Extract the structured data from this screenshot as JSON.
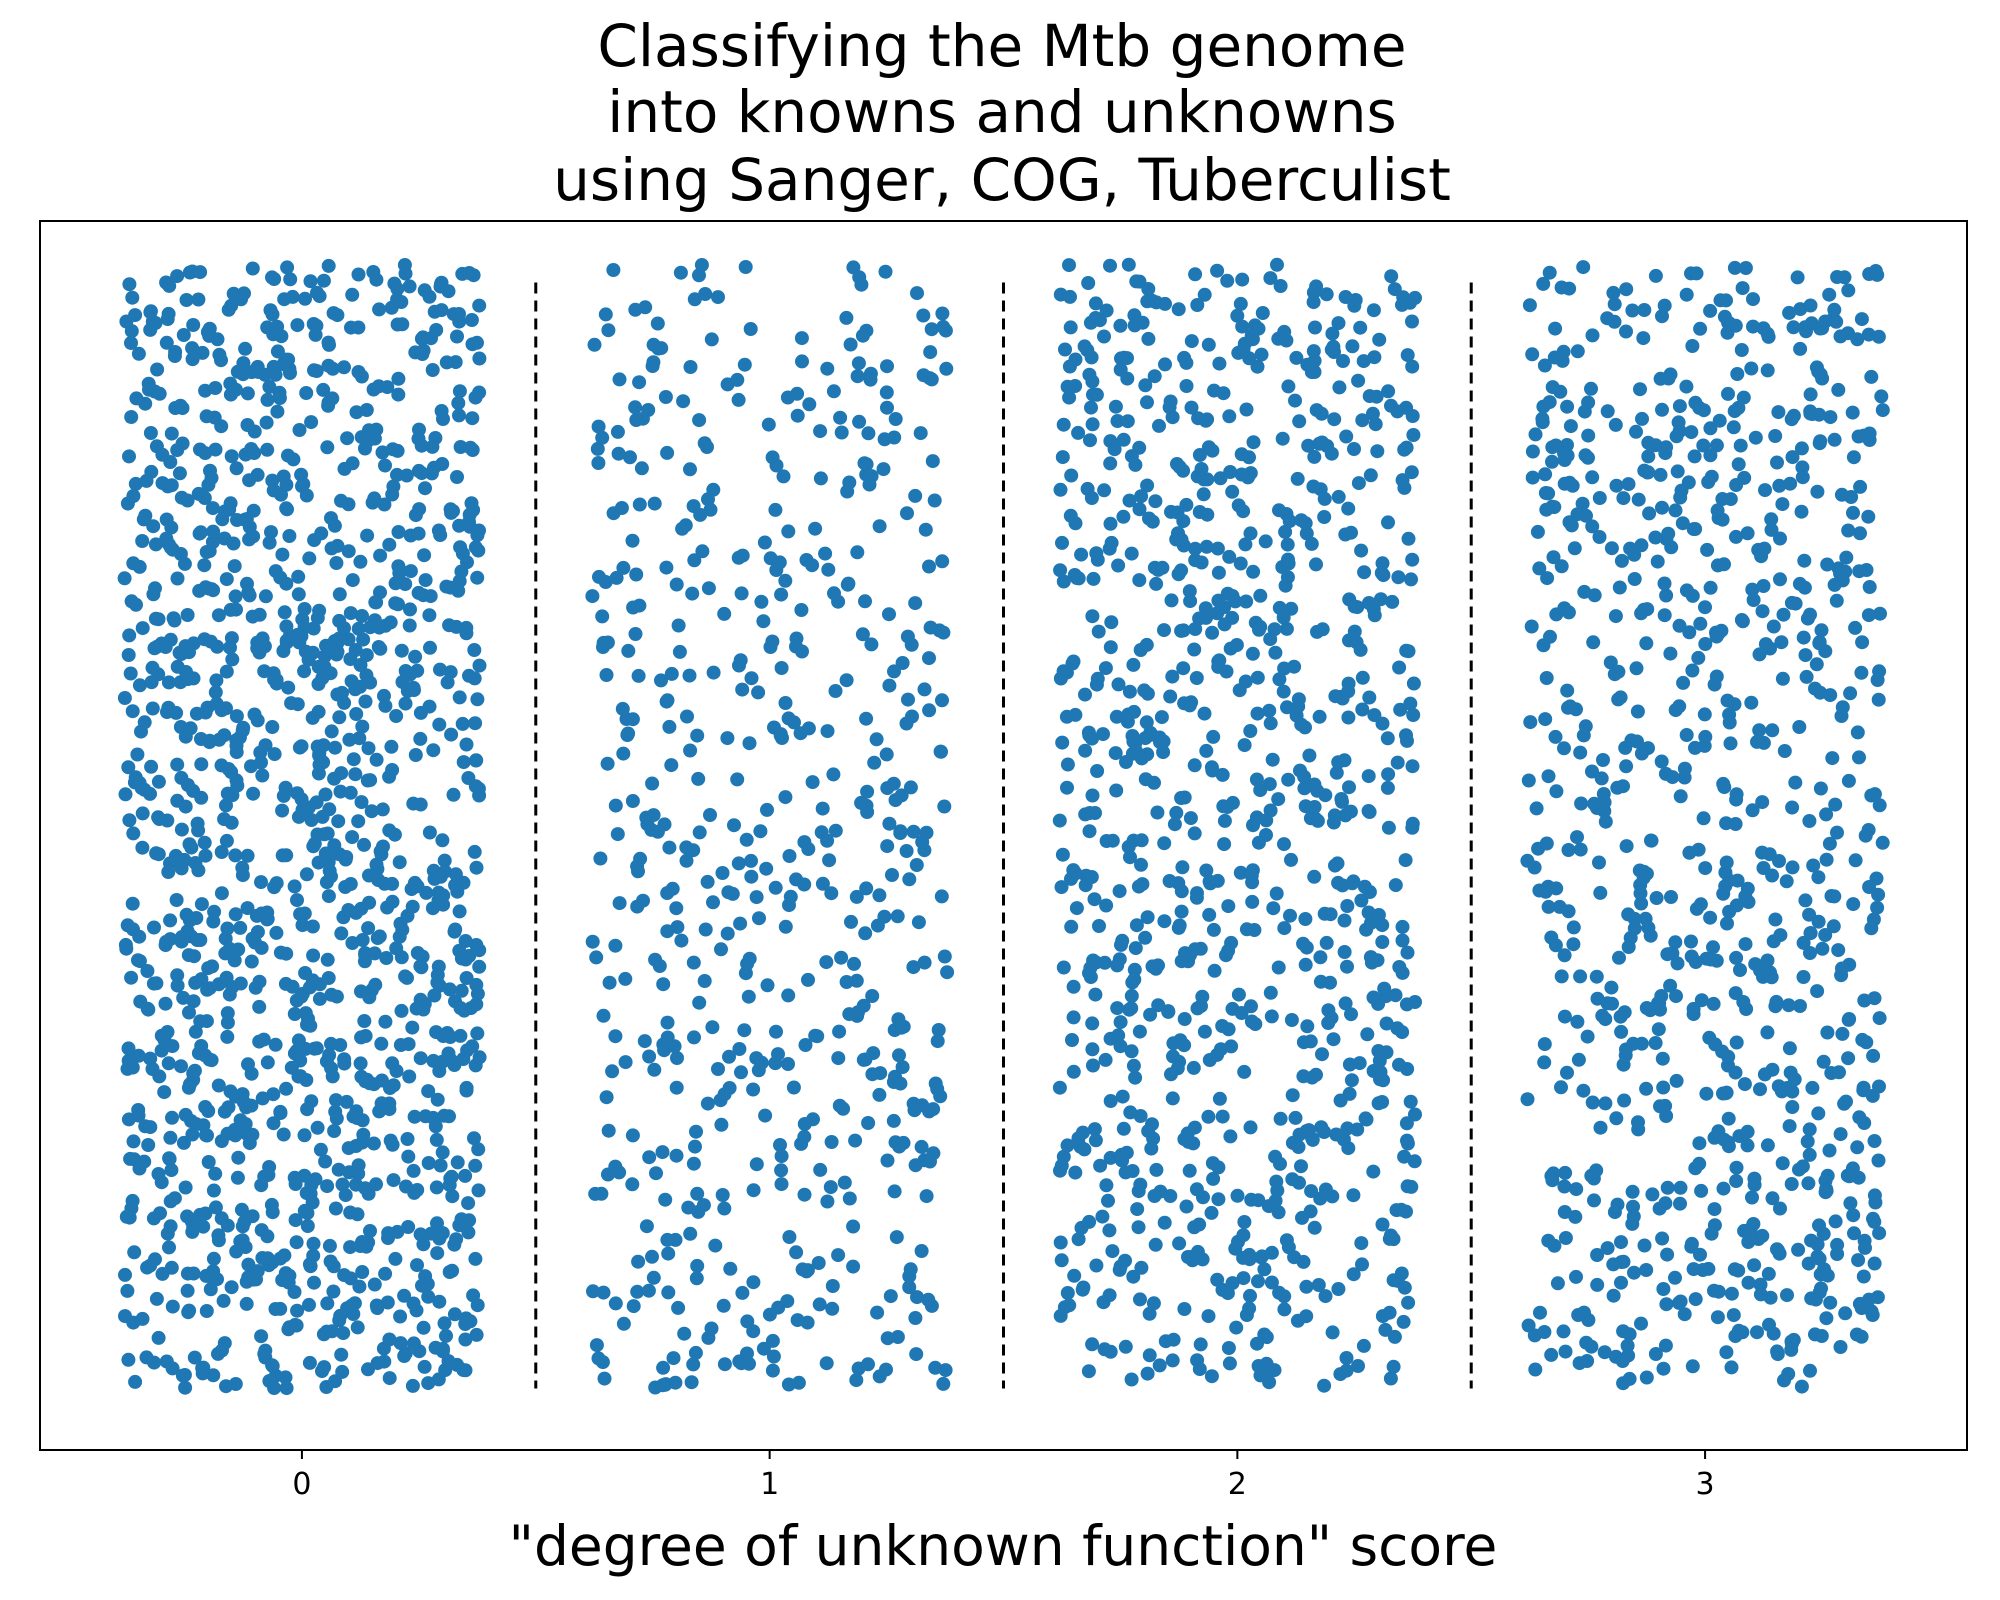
{
  "chart_data": {
    "type": "scatter",
    "title_lines": [
      "Classifying the Mtb genome",
      "into knowns and unknowns",
      "using Sanger, COG, Tuberculist"
    ],
    "xlabel": "\"degree of unknown function\" score",
    "ylabel": "",
    "xlim": [
      -0.56,
      3.56
    ],
    "ylim": [
      0,
      1
    ],
    "xticks": [
      0,
      1,
      2,
      3
    ],
    "xtick_labels": [
      "0",
      "1",
      "2",
      "3"
    ],
    "yticks_visible": false,
    "grid": false,
    "legend": "none",
    "categories": [
      "0",
      "1",
      "2",
      "3"
    ],
    "jitter_half_width": 0.38,
    "y_range": [
      0.05,
      0.965
    ],
    "point_counts": [
      1420,
      590,
      980,
      890
    ],
    "separators": [
      0.5,
      1.5,
      2.5
    ],
    "separator_y_range": [
      0.05,
      0.95
    ],
    "separator_style": "dashed",
    "colors": {
      "points": "#1f77b4",
      "separator": "#000000",
      "frame": "#000000"
    }
  }
}
